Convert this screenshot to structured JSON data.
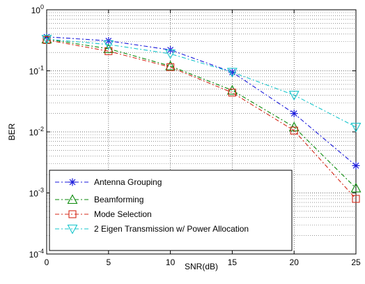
{
  "chart_data": {
    "type": "line",
    "title": "",
    "xlabel": "SNR(dB)",
    "ylabel": "BER",
    "x": [
      0,
      5,
      10,
      15,
      20,
      25
    ],
    "xlim": [
      0,
      25
    ],
    "ylim": [
      0.0001,
      1
    ],
    "yscale": "log",
    "grid": true,
    "legend_position": "bottom-left",
    "x_ticks": [
      "0",
      "5",
      "10",
      "15",
      "20",
      "25"
    ],
    "y_ticks": [
      {
        "value": 0.0001,
        "base": "10",
        "exp": "-4"
      },
      {
        "value": 0.001,
        "base": "10",
        "exp": "-3"
      },
      {
        "value": 0.01,
        "base": "10",
        "exp": "-2"
      },
      {
        "value": 0.1,
        "base": "10",
        "exp": "-1"
      },
      {
        "value": 1,
        "base": "10",
        "exp": "0"
      }
    ],
    "series": [
      {
        "name": "Antenna Grouping",
        "color": "#1a1adb",
        "marker": "asterisk",
        "values": [
          0.36,
          0.31,
          0.22,
          0.095,
          0.02,
          0.0028
        ]
      },
      {
        "name": "Beamforming",
        "color": "#0a8a0a",
        "marker": "triangle-up",
        "values": [
          0.33,
          0.23,
          0.12,
          0.048,
          0.012,
          0.0012
        ]
      },
      {
        "name": "Mode Selection",
        "color": "#d42a1a",
        "marker": "square",
        "values": [
          0.32,
          0.21,
          0.115,
          0.044,
          0.0105,
          0.0008
        ]
      },
      {
        "name": "2 Eigen Transmission w/ Power Allocation",
        "color": "#17c6cc",
        "marker": "triangle-down",
        "values": [
          0.33,
          0.27,
          0.19,
          0.095,
          0.04,
          0.012
        ]
      }
    ]
  }
}
